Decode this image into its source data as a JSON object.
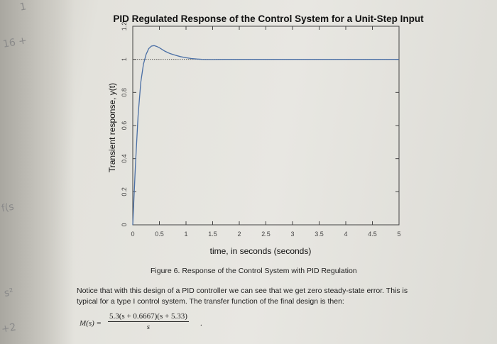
{
  "chart_data": {
    "type": "line",
    "title": "PID Regulated Response of the Control System for a Unit-Step Input",
    "xlabel": "time, in seconds (seconds)",
    "ylabel": "Transient response, y(t)",
    "xlim": [
      0,
      5
    ],
    "ylim": [
      0,
      1.2
    ],
    "x_ticks": [
      "0",
      "0.5",
      "1",
      "1.5",
      "2",
      "2.5",
      "3",
      "3.5",
      "4",
      "4.5",
      "5"
    ],
    "y_ticks": [
      "0",
      "0.2",
      "0.4",
      "0.6",
      "0.8",
      "1",
      "1.2"
    ],
    "grid": false,
    "reference_line": 1.0,
    "series": [
      {
        "color": "#4a6fa5",
        "x": [
          0,
          0.05,
          0.1,
          0.15,
          0.2,
          0.25,
          0.3,
          0.35,
          0.4,
          0.45,
          0.5,
          0.55,
          0.6,
          0.65,
          0.7,
          0.8,
          0.9,
          1.0,
          1.1,
          1.2,
          1.3,
          1.4,
          1.5,
          1.7,
          2.0,
          2.5,
          3.0,
          3.5,
          4.0,
          4.5,
          5.0
        ],
        "y": [
          0,
          0.36,
          0.66,
          0.86,
          0.97,
          1.03,
          1.065,
          1.08,
          1.083,
          1.078,
          1.07,
          1.06,
          1.05,
          1.042,
          1.035,
          1.025,
          1.016,
          1.01,
          1.005,
          1.002,
          1.0,
          0.999,
          0.999,
          1.0,
          1.0,
          1.0,
          1.0,
          1.0,
          1.0,
          1.0,
          1.0
        ]
      }
    ]
  },
  "document": {
    "figure_caption": "Figure 6.   Response of the Control System with PID Regulation",
    "paragraph_line1": "Notice that with this design of a PID controller we can see that we get zero steady-state error.  This is",
    "paragraph_line2": "typical for a type I control system.  The transfer function of the final design is then:",
    "equation_lhs": "M(s) =",
    "equation_numerator": "5.3(s + 0.6667)(s + 5.33)",
    "equation_denominator": "s",
    "equation_end": "."
  },
  "margin_notes": [
    "1",
    "16 +",
    "f(s",
    "s²",
    "+2"
  ],
  "colors": {
    "curve": "#4a6fa5",
    "axes": "#333333",
    "reference": "#555555"
  }
}
